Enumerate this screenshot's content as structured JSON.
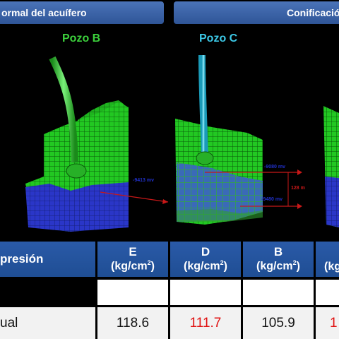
{
  "headers": {
    "left": "ormal del acuífero",
    "right": "Conificació"
  },
  "wells": {
    "b_label": "Pozo B",
    "c_label": "Pozo C"
  },
  "annotations": {
    "b_depth": "-9413 mv",
    "c_top": "-9080 mv",
    "c_mid": "128 m",
    "c_bottom": "-9480 mv"
  },
  "table": {
    "row_header": "presión",
    "columns": [
      {
        "letter": "E",
        "unit": "(kg/cm",
        "sup": "2",
        "close": ")"
      },
      {
        "letter": "D",
        "unit": "(kg/cm",
        "sup": "2",
        "close": ")"
      },
      {
        "letter": "B",
        "unit": "(kg/cm",
        "sup": "2",
        "close": ")"
      },
      {
        "letter": "",
        "unit": "(kg",
        "sup": "",
        "close": ""
      }
    ],
    "data_row_label": "ual",
    "values": [
      "118.6",
      "111.7",
      "105.9",
      "1"
    ]
  },
  "colors": {
    "header_blue": "#2f5597",
    "well_b_green": "#3cd03c",
    "well_c_cyan": "#3cc8e6",
    "grid_green": "#1fc81f",
    "aquifer_blue": "#2a36c8",
    "highlight_red": "#e01010"
  }
}
